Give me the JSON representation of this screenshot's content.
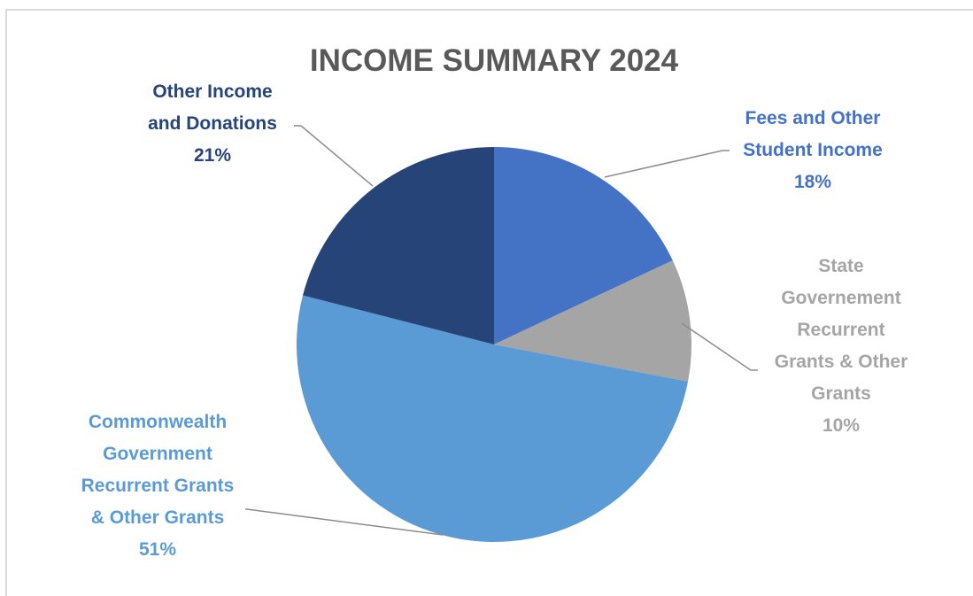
{
  "chart_data": {
    "type": "pie",
    "title": "INCOME SUMMARY 2024",
    "title_color": "#595959",
    "start_angle_deg": 0,
    "direction": "clockwise",
    "slices": [
      {
        "name": "Fees and Other Student Income",
        "value": 18,
        "percent_label": "18%",
        "color": "#4472c4",
        "label_color": "#4472c4",
        "label_lines": [
          "Fees and Other",
          "Student Income",
          "18%"
        ]
      },
      {
        "name": "State Governement Recurrent Grants & Other Grants",
        "value": 10,
        "percent_label": "10%",
        "color": "#a5a5a5",
        "label_color": "#a5a5a5",
        "label_lines": [
          "State",
          "Governement",
          "Recurrent",
          "Grants & Other",
          "Grants",
          "10%"
        ]
      },
      {
        "name": "Commonwealth Government Recurrent Grants & Other Grants",
        "value": 51,
        "percent_label": "51%",
        "color": "#5b9bd5",
        "label_color": "#5b9bd5",
        "label_lines": [
          "Commonwealth",
          "Government",
          "Recurrent Grants",
          "& Other Grants",
          "51%"
        ]
      },
      {
        "name": "Other Income and Donations",
        "value": 21,
        "percent_label": "21%",
        "color": "#264478",
        "label_color": "#264478",
        "label_lines": [
          "Other Income",
          "and Donations",
          "21%"
        ]
      }
    ],
    "legend": "none",
    "leader_line_color": "#8c8c8c"
  }
}
